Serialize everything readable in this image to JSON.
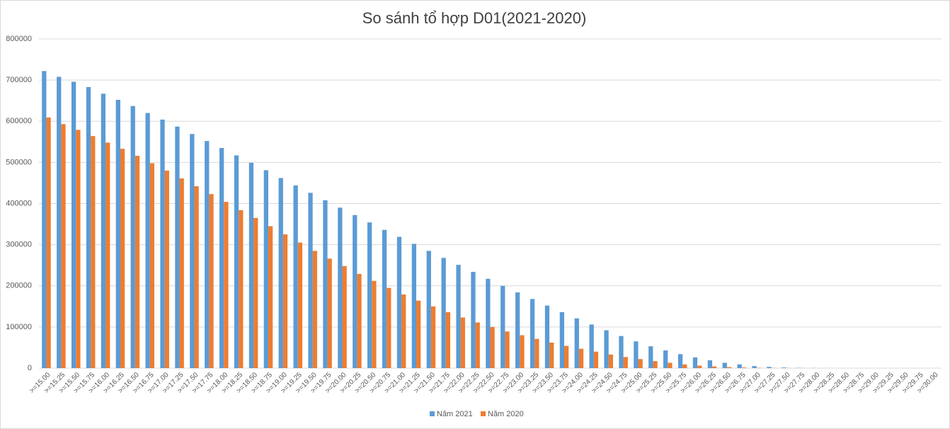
{
  "chart_data": {
    "type": "bar",
    "title": "So sánh tổ hợp D01(2021-2020)",
    "categories": [
      ">=15.00",
      ">=15.25",
      ">=15.50",
      ">=15.75",
      ">=16.00",
      ">=16.25",
      ">=16.50",
      ">=16.75",
      ">=17.00",
      ">=17.25",
      ">=17.50",
      ">=17.75",
      ">=18.00",
      ">=18.25",
      ">=18.50",
      ">=18.75",
      ">=19.00",
      ">=19.25",
      ">=19.50",
      ">=19.75",
      ">=20.00",
      ">=20.25",
      ">=20.50",
      ">=20.75",
      ">=21.00",
      ">=21.25",
      ">=21.50",
      ">=21.75",
      ">=22.00",
      ">=22.25",
      ">=22.50",
      ">=22.75",
      ">=23.00",
      ">=23.25",
      ">=23.50",
      ">=23.75",
      ">=24.00",
      ">=24.25",
      ">=24.50",
      ">=24.75",
      ">=25.00",
      ">=25.25",
      ">=25.50",
      ">=25.75",
      ">=26.00",
      ">=26.25",
      ">=26.50",
      ">=26.75",
      ">=27.00",
      ">=27.25",
      ">=27.50",
      ">=27.75",
      ">=28.00",
      ">=28.25",
      ">=28.50",
      ">=28.75",
      ">=29.00",
      ">=29.25",
      ">=29.50",
      ">=29.75",
      ">=30.00"
    ],
    "series": [
      {
        "name": "Năm 2021",
        "color": "#5b9bd5",
        "values": [
          722000,
          708000,
          696000,
          683000,
          667000,
          652000,
          637000,
          620000,
          604000,
          587000,
          569000,
          552000,
          535000,
          517000,
          499000,
          481000,
          462000,
          444000,
          426000,
          408000,
          390000,
          372000,
          354000,
          336000,
          319000,
          302000,
          285000,
          268000,
          251000,
          234000,
          217000,
          200000,
          184000,
          168000,
          152000,
          136000,
          121000,
          106000,
          92000,
          78000,
          65000,
          53000,
          43000,
          34000,
          26000,
          19000,
          13000,
          9000,
          5000,
          3000,
          1500,
          700,
          300,
          100,
          0,
          0,
          0,
          0,
          0,
          0,
          0
        ]
      },
      {
        "name": "Năm 2020",
        "color": "#ed7d31",
        "values": [
          609000,
          593000,
          579000,
          564000,
          548000,
          533000,
          516000,
          498000,
          480000,
          461000,
          442000,
          423000,
          404000,
          384000,
          365000,
          345000,
          325000,
          305000,
          285000,
          266000,
          248000,
          229000,
          212000,
          195000,
          179000,
          164000,
          150000,
          136000,
          123000,
          111000,
          100000,
          89000,
          80000,
          71000,
          62000,
          54000,
          47000,
          40000,
          33000,
          27000,
          22000,
          17000,
          13000,
          9000,
          6000,
          4000,
          2500,
          1500,
          800,
          400,
          200,
          100,
          0,
          0,
          0,
          0,
          0,
          0,
          0,
          0,
          0
        ]
      }
    ],
    "ylim": [
      0,
      800000
    ],
    "yticks": [
      0,
      100000,
      200000,
      300000,
      400000,
      500000,
      600000,
      700000,
      800000
    ],
    "grid": true,
    "legend": "bottom"
  }
}
